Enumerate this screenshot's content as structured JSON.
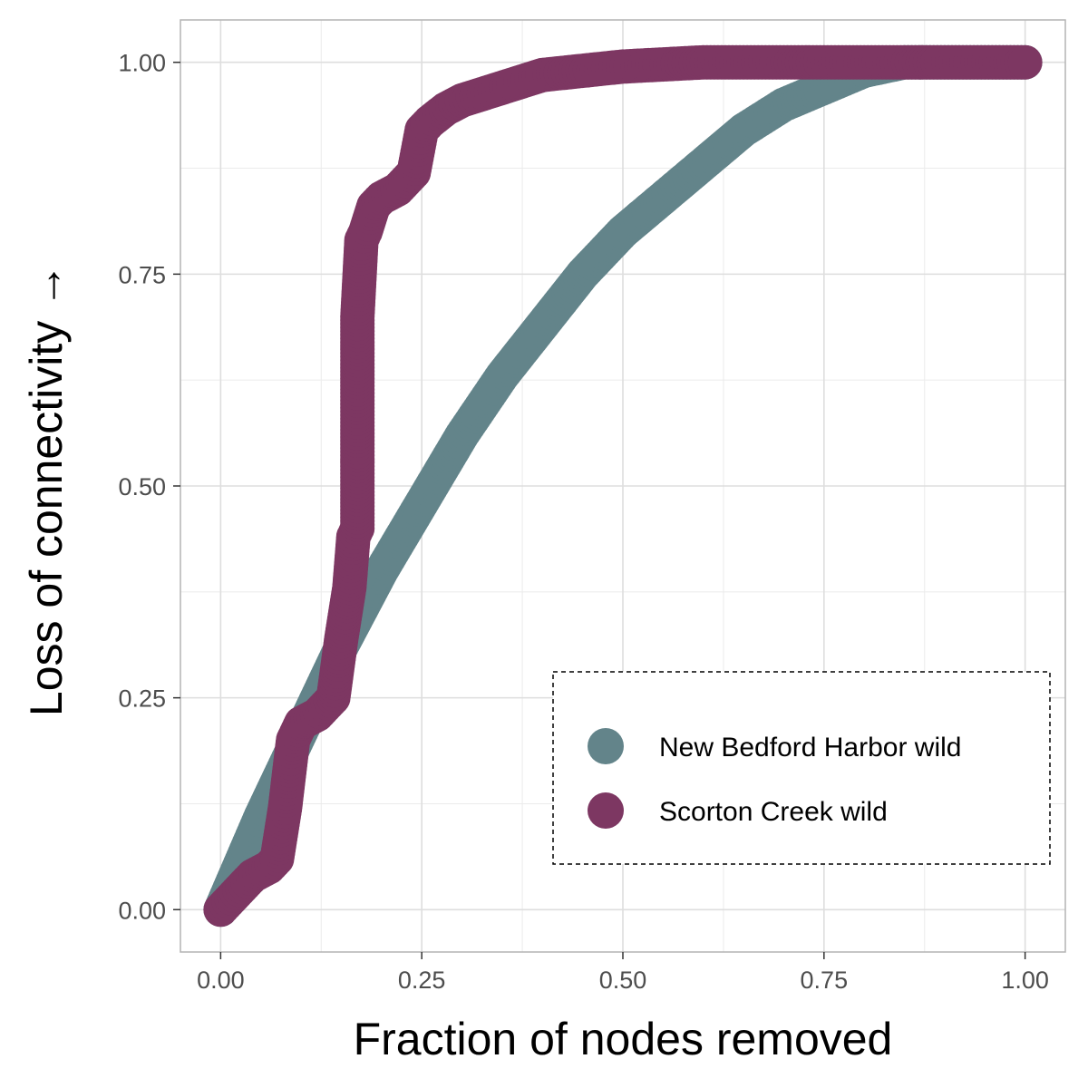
{
  "chart_data": {
    "type": "scatter",
    "xlabel": "Fraction of nodes removed",
    "ylabel": "Loss of connectivity →",
    "xlim": [
      -0.05,
      1.05
    ],
    "ylim": [
      -0.05,
      1.05
    ],
    "x_ticks": [
      "0.00",
      "0.25",
      "0.50",
      "0.75",
      "1.00"
    ],
    "y_ticks": [
      "0.00",
      "0.25",
      "0.50",
      "0.75",
      "1.00"
    ],
    "x_tick_values": [
      0,
      0.25,
      0.5,
      0.75,
      1.0
    ],
    "y_tick_values": [
      0,
      0.25,
      0.5,
      0.75,
      1.0
    ],
    "grid": true,
    "legend_position": "bottom-right",
    "series": [
      {
        "name": "New Bedford Harbor wild",
        "color": "#63848a",
        "x": [
          0.0,
          0.05,
          0.1,
          0.15,
          0.2,
          0.25,
          0.3,
          0.35,
          0.4,
          0.45,
          0.5,
          0.55,
          0.6,
          0.65,
          0.7,
          0.75,
          0.8,
          0.85,
          0.9,
          0.95,
          1.0
        ],
        "y": [
          0.0,
          0.11,
          0.21,
          0.31,
          0.4,
          0.48,
          0.56,
          0.63,
          0.69,
          0.75,
          0.8,
          0.84,
          0.88,
          0.92,
          0.95,
          0.97,
          0.99,
          1.0,
          1.0,
          1.0,
          1.0
        ]
      },
      {
        "name": "Scorton Creek wild",
        "color": "#7d3762",
        "x": [
          0.0,
          0.02,
          0.04,
          0.06,
          0.07,
          0.08,
          0.09,
          0.1,
          0.12,
          0.14,
          0.15,
          0.16,
          0.165,
          0.17,
          0.17,
          0.175,
          0.18,
          0.19,
          0.2,
          0.22,
          0.24,
          0.25,
          0.26,
          0.28,
          0.3,
          0.35,
          0.4,
          0.45,
          0.5,
          0.6,
          0.7,
          0.8,
          0.9,
          1.0
        ],
        "y": [
          0.0,
          0.02,
          0.04,
          0.05,
          0.06,
          0.12,
          0.2,
          0.22,
          0.23,
          0.25,
          0.32,
          0.38,
          0.44,
          0.45,
          0.7,
          0.79,
          0.8,
          0.83,
          0.84,
          0.85,
          0.87,
          0.92,
          0.93,
          0.945,
          0.955,
          0.97,
          0.985,
          0.99,
          0.995,
          1.0,
          1.0,
          1.0,
          1.0,
          1.0
        ]
      }
    ]
  }
}
